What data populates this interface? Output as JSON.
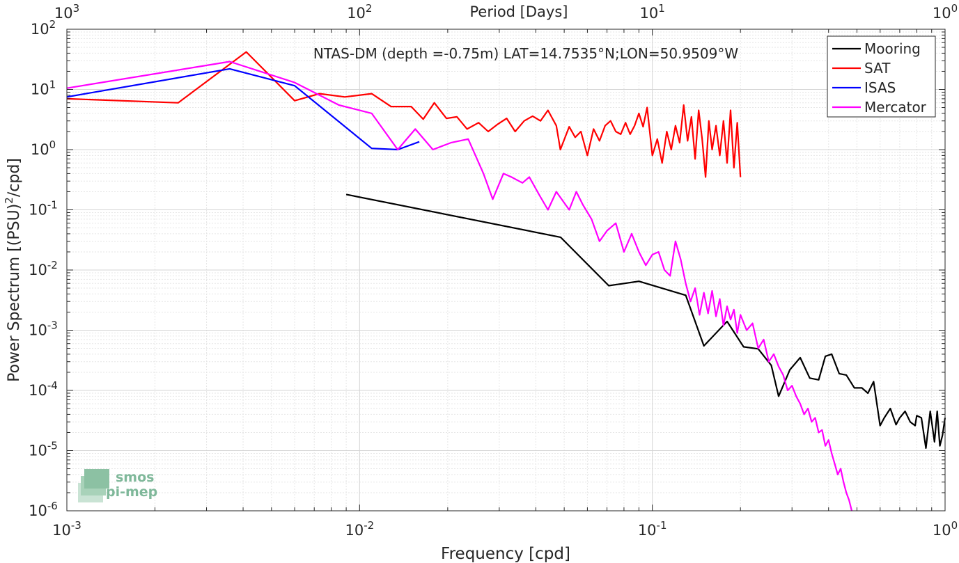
{
  "chart_data": {
    "type": "line",
    "title": "NTAS-DM (depth =-0.75m) LAT=14.7535°N;LON=50.9509°W",
    "xlabel": "Frequency [cpd]",
    "ylabel": "Power Spectrum [(PSU)",
    "ylabel_sup": "2",
    "ylabel_tail": "/cpd]",
    "top_xlabel": "Period [Days]",
    "x_scale": "log",
    "y_scale": "log",
    "xlim": [
      0.001,
      1
    ],
    "ylim": [
      1e-06,
      100
    ],
    "grid": true,
    "legend_position": "top-right",
    "x_ticks": [
      {
        "value": 0.001,
        "base": "10",
        "exp": "-3"
      },
      {
        "value": 0.01,
        "base": "10",
        "exp": "-2"
      },
      {
        "value": 0.1,
        "base": "10",
        "exp": "-1"
      },
      {
        "value": 1,
        "base": "10",
        "exp": "0"
      }
    ],
    "top_ticks": [
      {
        "value": 0.001,
        "base": "10",
        "exp": "3"
      },
      {
        "value": 0.01,
        "base": "10",
        "exp": "2"
      },
      {
        "value": 0.1,
        "base": "10",
        "exp": "1"
      },
      {
        "value": 1,
        "base": "10",
        "exp": "0"
      }
    ],
    "y_ticks": [
      {
        "value": 100,
        "base": "10",
        "exp": "2"
      },
      {
        "value": 10,
        "base": "10",
        "exp": "1"
      },
      {
        "value": 1,
        "base": "10",
        "exp": "0"
      },
      {
        "value": 0.1,
        "base": "10",
        "exp": "-1"
      },
      {
        "value": 0.01,
        "base": "10",
        "exp": "-2"
      },
      {
        "value": 0.001,
        "base": "10",
        "exp": "-3"
      },
      {
        "value": 0.0001,
        "base": "10",
        "exp": "-4"
      },
      {
        "value": 1e-05,
        "base": "10",
        "exp": "-5"
      },
      {
        "value": 1e-06,
        "base": "10",
        "exp": "-6"
      }
    ],
    "series": [
      {
        "name": "Mooring",
        "color": "#000000",
        "x": [
          0.009,
          0.0486,
          0.071,
          0.09,
          0.13,
          0.15,
          0.18,
          0.205,
          0.23,
          0.255,
          0.27,
          0.295,
          0.32,
          0.345,
          0.37,
          0.39,
          0.41,
          0.435,
          0.46,
          0.49,
          0.52,
          0.545,
          0.57,
          0.6,
          0.62,
          0.65,
          0.68,
          0.7,
          0.73,
          0.76,
          0.79,
          0.8,
          0.83,
          0.86,
          0.89,
          0.92,
          0.94,
          0.96,
          0.98,
          1.0
        ],
        "y": [
          0.18,
          0.035,
          0.0055,
          0.0065,
          0.0038,
          0.00055,
          0.0014,
          0.00053,
          0.00049,
          0.00026,
          8e-05,
          0.00022,
          0.00035,
          0.00016,
          0.00015,
          0.00037,
          0.0004,
          0.00019,
          0.00018,
          0.00011,
          0.00011,
          9e-05,
          0.00014,
          2.6e-05,
          3.5e-05,
          5e-05,
          2.7e-05,
          3.5e-05,
          4.5e-05,
          3e-05,
          2.6e-05,
          3.8e-05,
          3.5e-05,
          1.1e-05,
          4.5e-05,
          1.4e-05,
          4.5e-05,
          1.2e-05,
          1.8e-05,
          3.5e-05
        ]
      },
      {
        "name": "SAT",
        "color": "#ff0000",
        "x": [
          0.001,
          0.0024,
          0.0041,
          0.006,
          0.0073,
          0.0089,
          0.011,
          0.0128,
          0.015,
          0.0165,
          0.018,
          0.0198,
          0.0215,
          0.0233,
          0.0255,
          0.0275,
          0.0295,
          0.0318,
          0.034,
          0.0365,
          0.039,
          0.0415,
          0.044,
          0.047,
          0.0485,
          0.052,
          0.0545,
          0.057,
          0.06,
          0.063,
          0.066,
          0.069,
          0.072,
          0.075,
          0.078,
          0.081,
          0.084,
          0.087,
          0.09,
          0.093,
          0.096,
          0.1,
          0.104,
          0.108,
          0.112,
          0.116,
          0.12,
          0.124,
          0.128,
          0.132,
          0.136,
          0.14,
          0.144,
          0.148,
          0.152,
          0.156,
          0.16,
          0.165,
          0.17,
          0.175,
          0.18,
          0.185,
          0.19,
          0.195,
          0.2
        ],
        "y": [
          7.0,
          6.0,
          42,
          6.5,
          8.5,
          7.5,
          8.5,
          5.2,
          5.2,
          3.2,
          6.0,
          3.3,
          3.5,
          2.2,
          2.8,
          2.0,
          2.6,
          3.3,
          2.0,
          3.0,
          3.6,
          3.0,
          4.5,
          2.5,
          1.0,
          2.4,
          1.6,
          2.0,
          0.8,
          2.2,
          1.4,
          2.5,
          3.0,
          2.0,
          1.8,
          2.8,
          1.8,
          2.5,
          4.0,
          2.4,
          5.0,
          0.8,
          1.5,
          0.6,
          2.0,
          1.0,
          2.5,
          1.3,
          5.5,
          1.4,
          3.5,
          0.7,
          4.5,
          1.5,
          0.35,
          3.0,
          1.0,
          2.5,
          0.8,
          3.0,
          0.6,
          4.5,
          0.5,
          2.8,
          0.35
        ]
      },
      {
        "name": "ISAS",
        "color": "#0000ff",
        "x": [
          0.001,
          0.0036,
          0.006,
          0.011,
          0.0135,
          0.016
        ],
        "y": [
          7.5,
          22,
          11.5,
          1.05,
          1.0,
          1.35
        ]
      },
      {
        "name": "Mercator",
        "color": "#ff00ff",
        "x": [
          0.001,
          0.0036,
          0.006,
          0.0085,
          0.011,
          0.0135,
          0.0155,
          0.0178,
          0.0205,
          0.0235,
          0.0265,
          0.0285,
          0.031,
          0.033,
          0.036,
          0.038,
          0.041,
          0.044,
          0.047,
          0.052,
          0.055,
          0.058,
          0.062,
          0.066,
          0.07,
          0.075,
          0.08,
          0.085,
          0.09,
          0.095,
          0.1,
          0.105,
          0.11,
          0.115,
          0.12,
          0.125,
          0.13,
          0.135,
          0.14,
          0.145,
          0.15,
          0.155,
          0.16,
          0.165,
          0.17,
          0.175,
          0.18,
          0.185,
          0.19,
          0.195,
          0.2,
          0.21,
          0.22,
          0.23,
          0.24,
          0.25,
          0.26,
          0.27,
          0.28,
          0.29,
          0.3,
          0.31,
          0.32,
          0.33,
          0.34,
          0.35,
          0.36,
          0.37,
          0.38,
          0.39,
          0.4,
          0.41,
          0.42,
          0.43,
          0.44,
          0.45,
          0.46,
          0.47,
          0.48
        ],
        "y": [
          10.5,
          29,
          13,
          5.5,
          4.0,
          1.0,
          2.2,
          1.0,
          1.3,
          1.5,
          0.4,
          0.15,
          0.4,
          0.35,
          0.28,
          0.35,
          0.18,
          0.1,
          0.2,
          0.1,
          0.2,
          0.12,
          0.07,
          0.03,
          0.045,
          0.06,
          0.02,
          0.04,
          0.02,
          0.012,
          0.018,
          0.02,
          0.01,
          0.008,
          0.03,
          0.015,
          0.006,
          0.003,
          0.005,
          0.0018,
          0.0042,
          0.0019,
          0.0045,
          0.0017,
          0.0033,
          0.0012,
          0.0025,
          0.0015,
          0.0022,
          0.0009,
          0.0018,
          0.001,
          0.0013,
          0.0005,
          0.0007,
          0.0003,
          0.0004,
          0.00025,
          0.00018,
          0.0001,
          0.00012,
          8e-05,
          6e-05,
          4e-05,
          5e-05,
          3e-05,
          3.5e-05,
          2e-05,
          2.2e-05,
          1.2e-05,
          1.5e-05,
          9e-06,
          6e-06,
          4e-06,
          5e-06,
          3e-06,
          2e-06,
          1.5e-06,
          1e-06
        ]
      }
    ]
  },
  "logo": {
    "line1": "smos",
    "line2": "pi-mep",
    "color": "#7fb89a"
  }
}
